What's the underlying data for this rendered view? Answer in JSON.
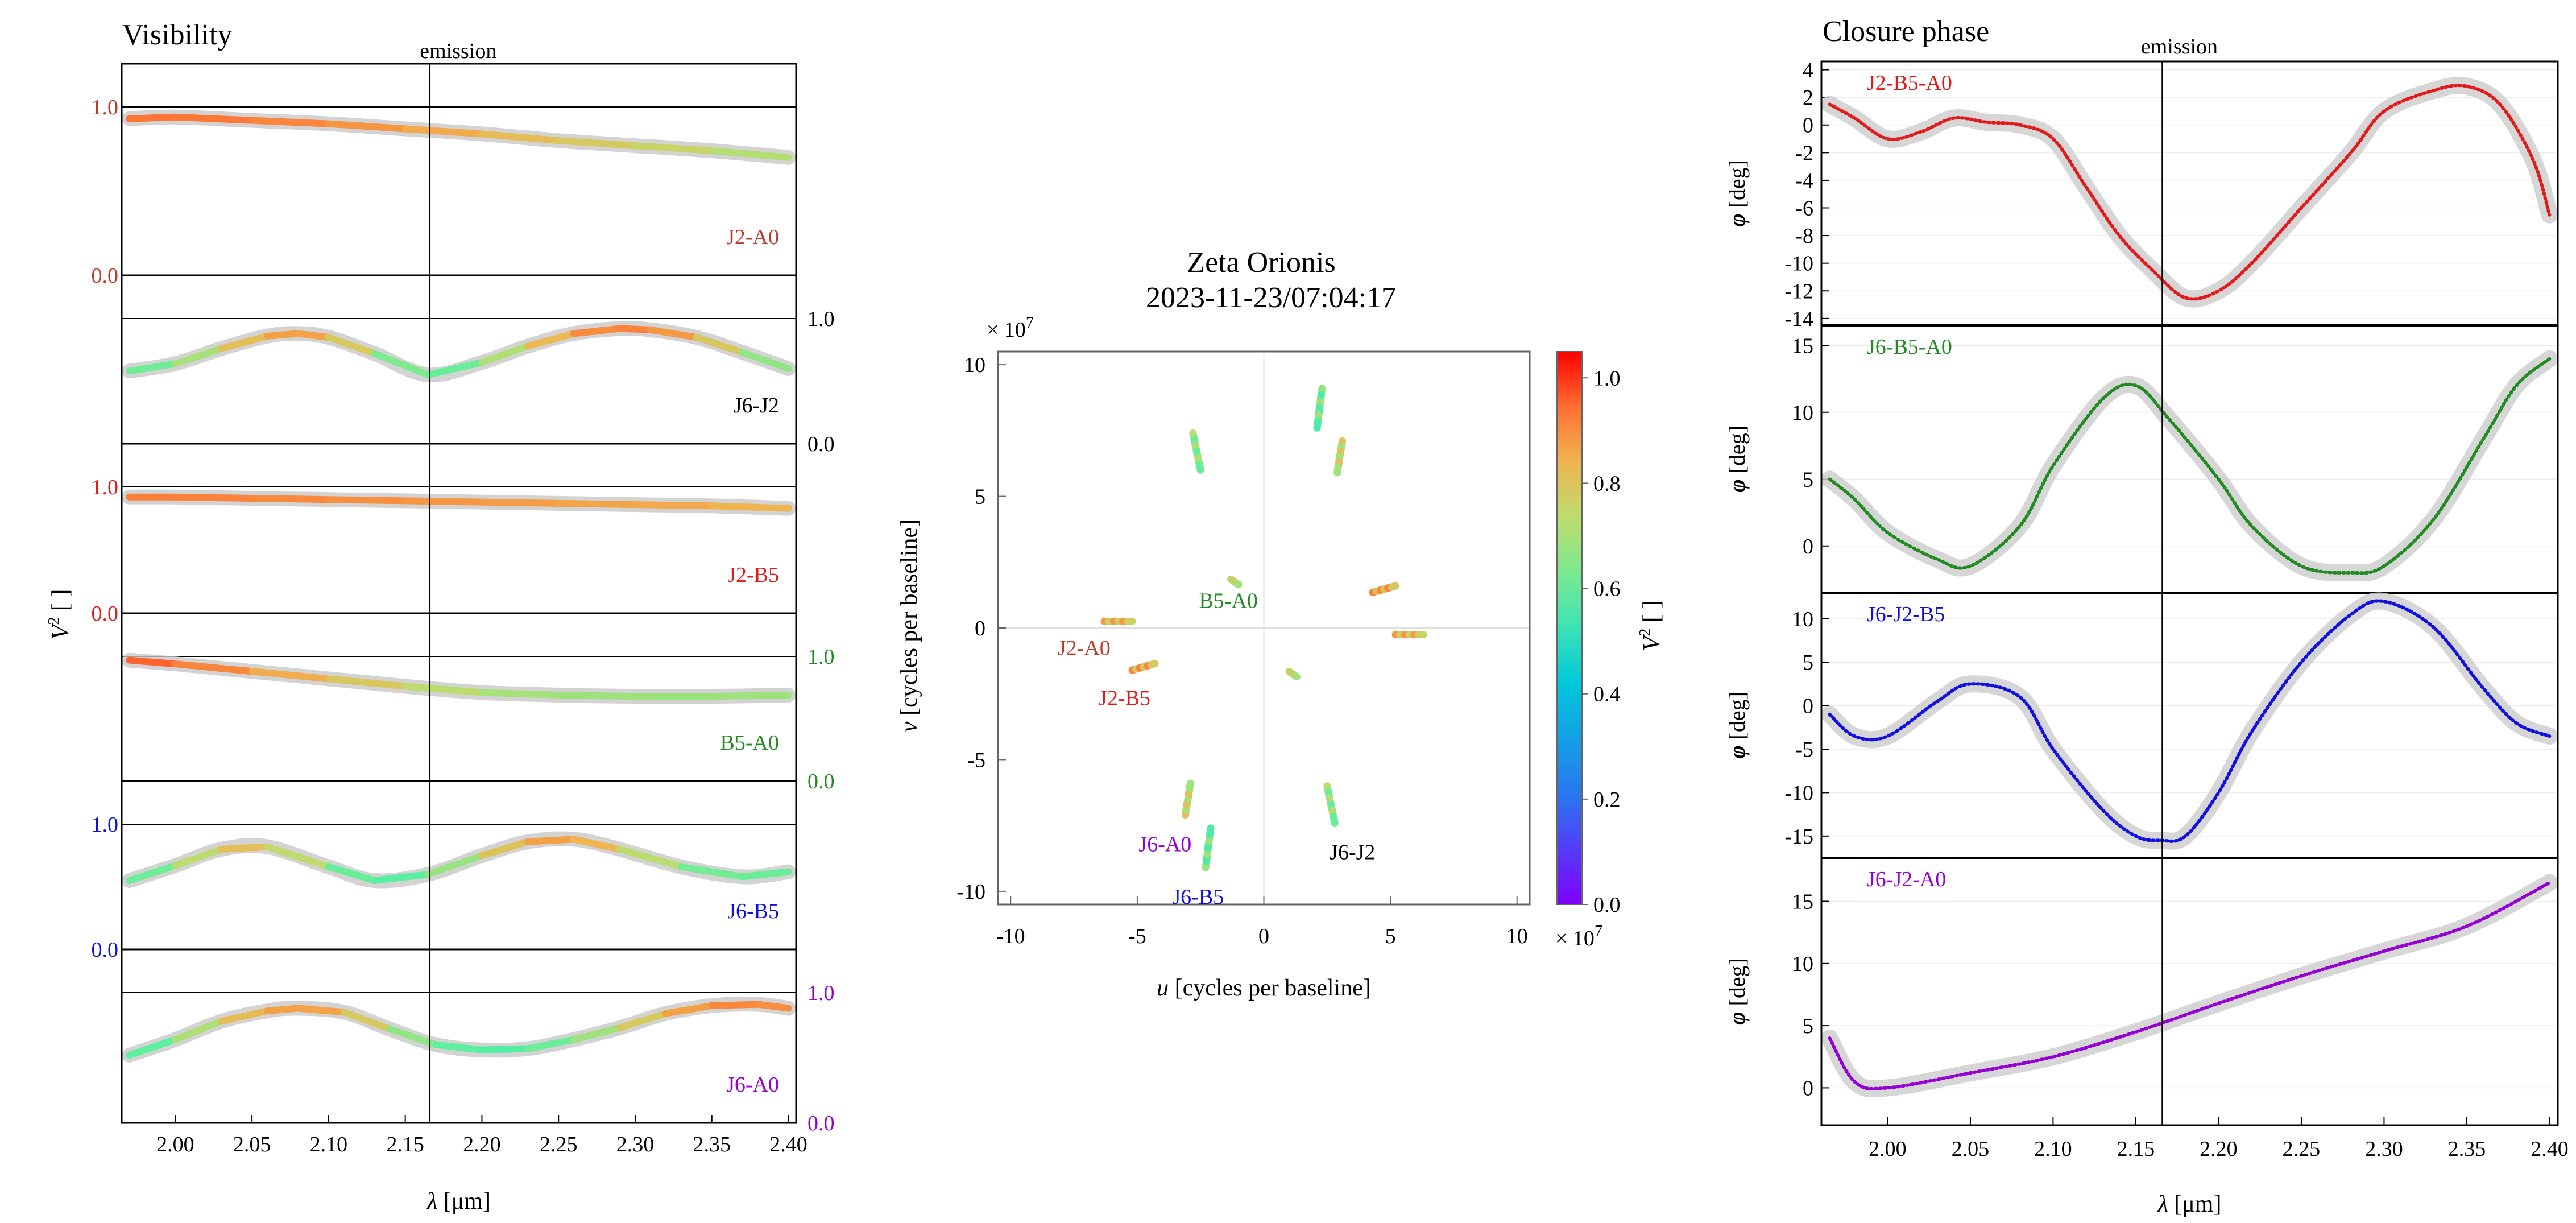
{
  "chart_data": [
    {
      "type": "line",
      "title": "Visibility",
      "annotation": "emission",
      "xlabel_sym": "λ",
      "xlabel_unit": " [μm]",
      "ylabel_sym": "V",
      "ylabel_sup": "2",
      "ylabel_unit": " [ ]",
      "xlim": [
        1.965,
        2.405
      ],
      "x_ticks": [
        "2.00",
        "2.05",
        "2.10",
        "2.15",
        "2.20",
        "2.25",
        "2.30",
        "2.35",
        "2.40"
      ],
      "emission_x": 2.166,
      "panel_tick_labels": [
        {
          "top": "1.0",
          "bottom": "0.0",
          "side": "left",
          "color": "#c0392b"
        },
        {
          "top": "1.0",
          "bottom": "0.0",
          "side": "right",
          "color": "#000000"
        },
        {
          "top": "1.0",
          "bottom": "0.0",
          "side": "left",
          "color": "#e31a1c"
        },
        {
          "top": "1.0",
          "bottom": "0.0",
          "side": "right",
          "color": "#228b22"
        },
        {
          "top": "1.0",
          "bottom": "0.0",
          "side": "left",
          "color": "#1010e0"
        },
        {
          "top": "1.0",
          "bottom": "0.0",
          "side": "right",
          "color": "#9400d3"
        }
      ],
      "series": [
        {
          "name": "J2-A0",
          "color": "#c0392b",
          "x": [
            1.97,
            2.0,
            2.05,
            2.1,
            2.15,
            2.2,
            2.25,
            2.3,
            2.35,
            2.4
          ],
          "y": [
            0.93,
            0.94,
            0.92,
            0.9,
            0.87,
            0.84,
            0.8,
            0.77,
            0.74,
            0.7
          ]
        },
        {
          "name": "J6-J2",
          "color": "#000000",
          "x": [
            1.97,
            2.0,
            2.03,
            2.06,
            2.08,
            2.1,
            2.13,
            2.165,
            2.2,
            2.23,
            2.26,
            2.29,
            2.31,
            2.34,
            2.37,
            2.4
          ],
          "y": [
            0.58,
            0.64,
            0.76,
            0.86,
            0.88,
            0.85,
            0.72,
            0.55,
            0.65,
            0.78,
            0.88,
            0.92,
            0.91,
            0.85,
            0.73,
            0.6
          ]
        },
        {
          "name": "J2-B5",
          "color": "#e31a1c",
          "x": [
            1.97,
            2.0,
            2.05,
            2.1,
            2.15,
            2.2,
            2.25,
            2.3,
            2.35,
            2.4
          ],
          "y": [
            0.92,
            0.92,
            0.91,
            0.9,
            0.89,
            0.88,
            0.87,
            0.86,
            0.85,
            0.83
          ]
        },
        {
          "name": "B5-A0",
          "color": "#228b22",
          "x": [
            1.97,
            2.0,
            2.05,
            2.1,
            2.15,
            2.2,
            2.25,
            2.3,
            2.35,
            2.4
          ],
          "y": [
            0.97,
            0.94,
            0.88,
            0.82,
            0.76,
            0.71,
            0.69,
            0.68,
            0.68,
            0.69
          ]
        },
        {
          "name": "J6-B5",
          "color": "#1010e0",
          "x": [
            1.97,
            2.0,
            2.03,
            2.06,
            2.1,
            2.13,
            2.165,
            2.2,
            2.23,
            2.26,
            2.29,
            2.33,
            2.37,
            2.4
          ],
          "y": [
            0.55,
            0.67,
            0.8,
            0.82,
            0.66,
            0.55,
            0.6,
            0.75,
            0.86,
            0.88,
            0.8,
            0.66,
            0.58,
            0.62
          ]
        },
        {
          "name": "J6-A0",
          "color": "#9400d3",
          "x": [
            1.97,
            2.0,
            2.03,
            2.06,
            2.08,
            2.11,
            2.14,
            2.17,
            2.2,
            2.23,
            2.26,
            2.29,
            2.32,
            2.35,
            2.38,
            2.4
          ],
          "y": [
            0.52,
            0.64,
            0.78,
            0.86,
            0.88,
            0.85,
            0.72,
            0.6,
            0.56,
            0.57,
            0.64,
            0.73,
            0.84,
            0.9,
            0.91,
            0.88
          ]
        }
      ]
    },
    {
      "type": "scatter",
      "title": "Zeta Orionis",
      "subtitle": "2023-11-23/07:04:17",
      "xlabel_sym": "u",
      "xlabel_unit": " [cycles per baseline]",
      "ylabel_sym": "v",
      "ylabel_unit": " [cycles per baseline]",
      "exp_mult": "× 10",
      "exp_power": "7",
      "xlim": [
        -10.5,
        10.5
      ],
      "ylim": [
        -10.5,
        10.5
      ],
      "ticks": [
        -10,
        -5,
        0,
        5,
        10
      ],
      "colorbar": {
        "label_sym": "V",
        "label_sup": "2",
        "label_unit": " [ ]",
        "range": [
          0.0,
          1.05
        ],
        "ticks": [
          "0.0",
          "0.2",
          "0.4",
          "0.6",
          "0.8",
          "1.0"
        ]
      },
      "tracks": [
        {
          "name": "J2-A0",
          "label_color": "#c0392b",
          "x1": -6.3,
          "y1": 0.25,
          "x2": -5.2,
          "y2": 0.25,
          "v2": 0.82,
          "label_x": -7.1,
          "label_y": -0.75
        },
        {
          "name": "J2-B5",
          "label_color": "#e31a1c",
          "x1": -5.2,
          "y1": -1.6,
          "x2": -4.3,
          "y2": -1.35,
          "v2": 0.85,
          "label_x": -5.5,
          "label_y": -2.65
        },
        {
          "name": "B5-A0",
          "label_color": "#228b22",
          "x1": -1.3,
          "y1": 1.85,
          "x2": -1.0,
          "y2": 1.65,
          "v2": 0.75,
          "label_x": -1.4,
          "label_y": 1.05
        },
        {
          "name": "J6-A0",
          "label_color": "#9400d3",
          "x1": -3.1,
          "y1": -7.1,
          "x2": -2.9,
          "y2": -5.9,
          "v2": 0.75,
          "label_x": -3.9,
          "label_y": -8.2
        },
        {
          "name": "J6-B5",
          "label_color": "#1010e0",
          "x1": -2.3,
          "y1": -9.1,
          "x2": -2.1,
          "y2": -7.6,
          "v2": 0.62,
          "label_x": -2.6,
          "label_y": -10.2
        },
        {
          "name": "J6-J2",
          "label_color": "#000000",
          "x1": 2.5,
          "y1": -6.0,
          "x2": 2.8,
          "y2": -7.4,
          "v2": 0.66,
          "label_x": 3.5,
          "label_y": -8.5
        },
        {
          "name": "",
          "label_color": "#000000",
          "x1": -2.8,
          "y1": 7.4,
          "x2": -2.5,
          "y2": 6.0,
          "v2": 0.66
        },
        {
          "name": "",
          "label_color": "#000000",
          "x1": 2.3,
          "y1": 9.1,
          "x2": 2.1,
          "y2": 7.6,
          "v2": 0.62
        },
        {
          "name": "",
          "label_color": "#000000",
          "x1": 3.1,
          "y1": 7.1,
          "x2": 2.9,
          "y2": 5.9,
          "v2": 0.75
        },
        {
          "name": "",
          "label_color": "#000000",
          "x1": 4.3,
          "y1": 1.35,
          "x2": 5.2,
          "y2": 1.6,
          "v2": 0.85
        },
        {
          "name": "",
          "label_color": "#000000",
          "x1": 5.2,
          "y1": -0.25,
          "x2": 6.3,
          "y2": -0.25,
          "v2": 0.82
        },
        {
          "name": "",
          "label_color": "#000000",
          "x1": 1.0,
          "y1": -1.65,
          "x2": 1.3,
          "y2": -1.85,
          "v2": 0.75
        }
      ]
    },
    {
      "type": "line",
      "title": "Closure phase",
      "annotation": "emission",
      "xlabel_sym": "λ",
      "xlabel_unit": " [μm]",
      "ylabel_sym": "φ",
      "ylabel_unit": " [deg]",
      "xlim": [
        1.96,
        2.405
      ],
      "x_ticks": [
        "2.00",
        "2.05",
        "2.10",
        "2.15",
        "2.20",
        "2.25",
        "2.30",
        "2.35",
        "2.40"
      ],
      "emission_x": 2.166,
      "series": [
        {
          "name": "J2-B5-A0",
          "color": "#e31a1c",
          "ylim": [
            -14.5,
            4.6
          ],
          "ticks": [
            "4",
            "2",
            "0",
            "-2",
            "-4",
            "-6",
            "-8",
            "-10",
            "-12",
            "-14"
          ],
          "tick_values": [
            4,
            2,
            0,
            -2,
            -4,
            -6,
            -8,
            -10,
            -12,
            -14
          ],
          "x": [
            1.965,
            1.98,
            2.0,
            2.02,
            2.04,
            2.06,
            2.08,
            2.1,
            2.12,
            2.14,
            2.16,
            2.18,
            2.2,
            2.22,
            2.25,
            2.28,
            2.3,
            2.33,
            2.35,
            2.37,
            2.39,
            2.4
          ],
          "y": [
            1.5,
            0.5,
            -1.0,
            -0.5,
            0.5,
            0.2,
            0.0,
            -1.0,
            -4.5,
            -8.0,
            -10.5,
            -12.5,
            -12.0,
            -10.0,
            -6.0,
            -2.0,
            1.0,
            2.5,
            2.8,
            1.5,
            -2.5,
            -6.5
          ]
        },
        {
          "name": "J6-B5-A0",
          "color": "#228b22",
          "ylim": [
            -3.5,
            16.5
          ],
          "ticks": [
            "15",
            "10",
            "5",
            "0"
          ],
          "tick_values": [
            15,
            10,
            5,
            0
          ],
          "x": [
            1.965,
            1.98,
            2.0,
            2.03,
            2.05,
            2.08,
            2.1,
            2.13,
            2.15,
            2.17,
            2.2,
            2.22,
            2.25,
            2.28,
            2.3,
            2.33,
            2.36,
            2.38,
            2.4
          ],
          "y": [
            5.0,
            3.5,
            1.0,
            -1.0,
            -1.5,
            1.5,
            6.0,
            11.0,
            12.0,
            9.5,
            5.0,
            1.5,
            -1.5,
            -2.0,
            -1.5,
            2.0,
            8.0,
            12.0,
            14.0
          ]
        },
        {
          "name": "J6-J2-B5",
          "color": "#1010e0",
          "ylim": [
            -17.5,
            13.0
          ],
          "ticks": [
            "10",
            "5",
            "0",
            "-5",
            "-10",
            "-15"
          ],
          "tick_values": [
            10,
            5,
            0,
            -5,
            -10,
            -15
          ],
          "x": [
            1.965,
            1.98,
            2.0,
            2.03,
            2.05,
            2.08,
            2.1,
            2.13,
            2.15,
            2.165,
            2.18,
            2.2,
            2.22,
            2.25,
            2.28,
            2.3,
            2.33,
            2.36,
            2.38,
            2.4
          ],
          "y": [
            -1.0,
            -3.5,
            -3.5,
            0.5,
            2.5,
            1.0,
            -5.0,
            -12.0,
            -15.0,
            -15.5,
            -15.0,
            -10.0,
            -3.0,
            5.0,
            10.5,
            12.0,
            9.0,
            2.0,
            -2.0,
            -3.5
          ]
        },
        {
          "name": "J6-J2-A0",
          "color": "#9400d3",
          "ylim": [
            -3.0,
            18.5
          ],
          "ticks": [
            "15",
            "10",
            "5",
            "0"
          ],
          "tick_values": [
            15,
            10,
            5,
            0
          ],
          "x": [
            1.965,
            1.98,
            2.0,
            2.05,
            2.1,
            2.15,
            2.2,
            2.25,
            2.3,
            2.35,
            2.4
          ],
          "y": [
            4.0,
            0.5,
            0.0,
            1.2,
            2.5,
            4.5,
            6.8,
            9.0,
            11.0,
            13.0,
            16.5
          ]
        }
      ]
    }
  ]
}
